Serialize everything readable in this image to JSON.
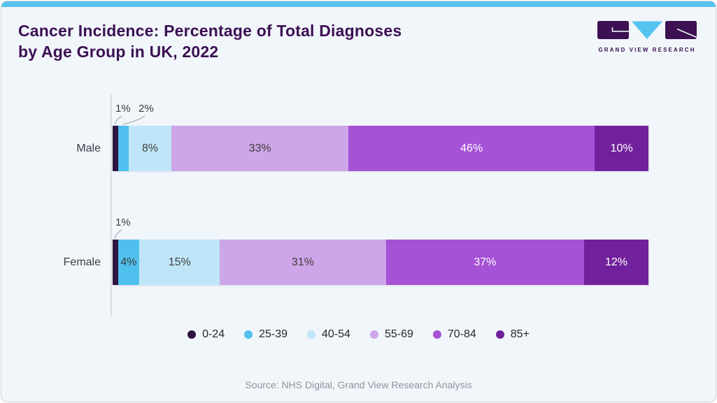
{
  "header": {
    "title_line1": "Cancer Incidence: Percentage of Total Diagnoses",
    "title_line2": "by Age Group in UK, 2022",
    "logo_text": "GRAND VIEW RESEARCH"
  },
  "chart_data": {
    "type": "stacked_bar_horizontal",
    "title": "Cancer Incidence: Percentage of Total Diagnoses by Age Group in UK, 2022",
    "categories": [
      "Male",
      "Female"
    ],
    "unit": "%",
    "x_range": [
      0,
      100
    ],
    "grid": false,
    "legend_position": "bottom",
    "series": [
      {
        "name": "0-24",
        "color": "#2e1440",
        "label_color": "#ffffff",
        "values": [
          1,
          1
        ]
      },
      {
        "name": "25-39",
        "color": "#4fc0ee",
        "label_color": "#3d3d3d",
        "values": [
          2,
          4
        ]
      },
      {
        "name": "40-54",
        "color": "#bfe6f8",
        "label_color": "#3d3d3d",
        "values": [
          8,
          15
        ]
      },
      {
        "name": "55-69",
        "color": "#cda5e8",
        "label_color": "#3d3d3d",
        "values": [
          33,
          31
        ]
      },
      {
        "name": "70-84",
        "color": "#a552d6",
        "label_color": "#ffffff",
        "values": [
          46,
          37
        ]
      },
      {
        "name": "85+",
        "color": "#72219c",
        "label_color": "#ffffff",
        "values": [
          10,
          12
        ]
      }
    ]
  },
  "footer": {
    "source": "Source: NHS Digital, Grand View Research Analysis"
  },
  "colors": {
    "accent_strip": "#58c4ef",
    "title": "#3c1053",
    "card_background": "#f1f6fa"
  }
}
